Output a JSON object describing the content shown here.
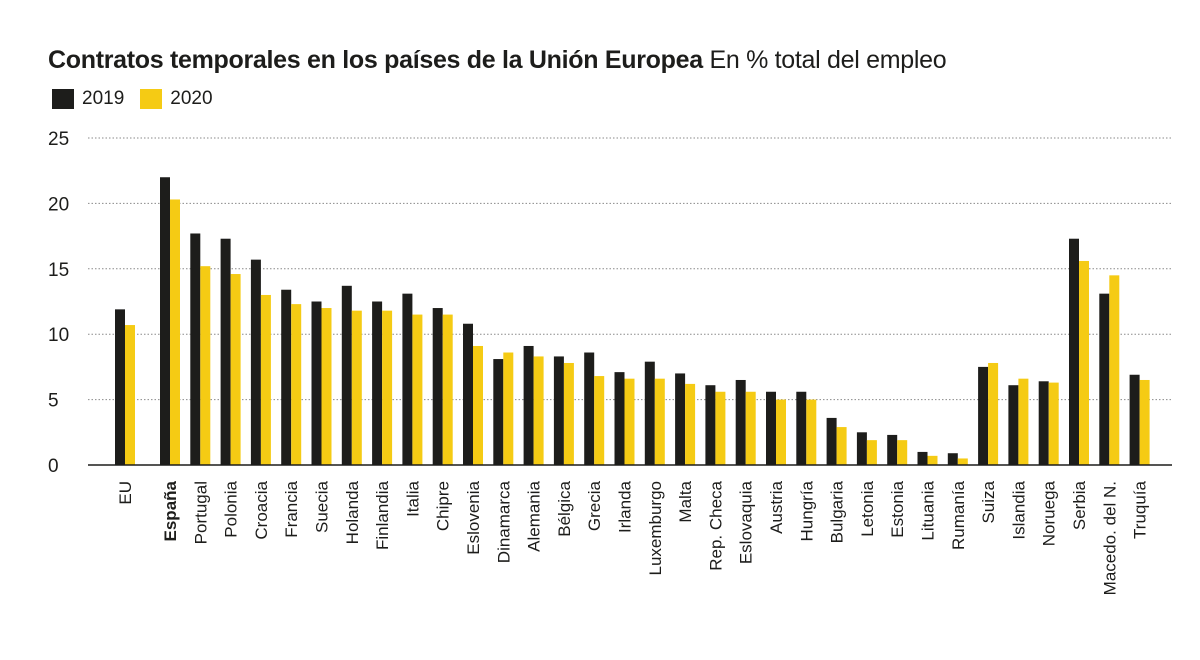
{
  "chart_data": {
    "type": "bar",
    "title": "Contratos temporales en los países de la Unión Europea",
    "subtitle": "En % total del empleo",
    "highlight_category": "España",
    "ylim": [
      0,
      25
    ],
    "yticks": [
      0,
      5,
      10,
      15,
      20,
      25
    ],
    "grid": true,
    "legend_position": "top-left",
    "categories": [
      "EU",
      "España",
      "Portugal",
      "Polonia",
      "Croacia",
      "Francia",
      "Suecia",
      "Holanda",
      "Finlandia",
      "Italia",
      "Chipre",
      "Eslovenia",
      "Dinamarca",
      "Alemania",
      "Bélgica",
      "Grecia",
      "Irlanda",
      "Luxemburgo",
      "Malta",
      "Rep. Checa",
      "Eslovaquia",
      "Austria",
      "Hungría",
      "Bulgaria",
      "Letonia",
      "Estonia",
      "Lituania",
      "Rumanía",
      "Suiza",
      "Islandia",
      "Noruega",
      "Serbia",
      "Macedo. del N.",
      "Truquía"
    ],
    "series": [
      {
        "name": "2019",
        "color": "#1d1d1b",
        "values": [
          11.9,
          22.0,
          17.7,
          17.3,
          15.7,
          13.4,
          12.5,
          13.7,
          12.5,
          13.1,
          12.0,
          10.8,
          8.1,
          9.1,
          8.3,
          8.6,
          7.1,
          7.9,
          7.0,
          6.1,
          6.5,
          5.6,
          5.6,
          3.6,
          2.5,
          2.3,
          1.0,
          0.9,
          7.5,
          6.1,
          6.4,
          17.3,
          13.1,
          6.9
        ]
      },
      {
        "name": "2020",
        "color": "#f5cb14",
        "values": [
          10.7,
          20.3,
          15.2,
          14.6,
          13.0,
          12.3,
          12.0,
          11.8,
          11.8,
          11.5,
          11.5,
          9.1,
          8.6,
          8.3,
          7.8,
          6.8,
          6.6,
          6.6,
          6.2,
          5.6,
          5.6,
          5.0,
          5.0,
          2.9,
          1.9,
          1.9,
          0.7,
          0.5,
          7.8,
          6.6,
          6.3,
          15.6,
          14.5,
          6.5
        ]
      }
    ]
  }
}
